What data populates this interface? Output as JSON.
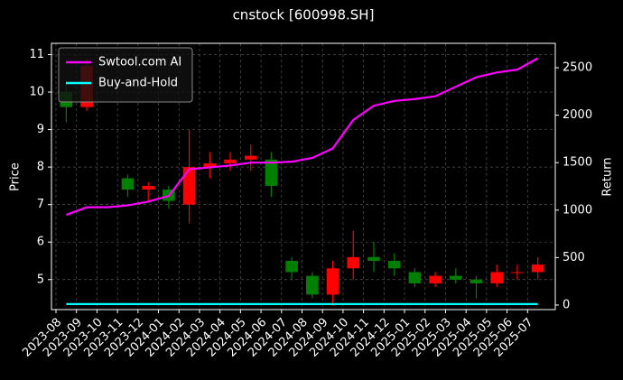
{
  "chart_data": {
    "type": "candlestick",
    "title": "cnstock [600998.SH]",
    "ylabel": "Price",
    "y2label": "Return",
    "x": [
      "2023-08",
      "2023-09",
      "2023-10",
      "2023-11",
      "2023-12",
      "2024-01",
      "2024-02",
      "2024-03",
      "2024-04",
      "2024-05",
      "2024-06",
      "2024-07",
      "2024-08",
      "2024-09",
      "2024-10",
      "2024-11",
      "2024-12",
      "2025-01",
      "2025-02",
      "2025-03",
      "2025-04",
      "2025-05",
      "2025-06",
      "2025-07"
    ],
    "xlim": [
      "2023-08",
      "2025-08"
    ],
    "ohlc": {
      "open": [
        10.0,
        9.6,
        null,
        7.7,
        7.4,
        7.4,
        7.0,
        8.0,
        8.1,
        8.2,
        8.2,
        5.5,
        5.1,
        4.6,
        5.3,
        5.6,
        5.5,
        5.2,
        4.9,
        5.1,
        5.0,
        4.9,
        5.2,
        5.2
      ],
      "high": [
        10.3,
        10.9,
        null,
        7.8,
        7.6,
        7.5,
        9.0,
        8.4,
        8.4,
        8.6,
        8.4,
        5.6,
        5.2,
        5.5,
        6.3,
        6.0,
        5.7,
        5.3,
        5.2,
        5.3,
        5.1,
        5.4,
        5.4,
        5.6
      ],
      "low": [
        9.2,
        9.5,
        null,
        7.2,
        7.1,
        6.9,
        6.5,
        7.7,
        7.9,
        7.9,
        7.2,
        5.0,
        4.5,
        4.3,
        5.0,
        5.2,
        5.1,
        4.8,
        4.8,
        4.9,
        4.5,
        4.8,
        5.0,
        5.0
      ],
      "close": [
        9.6,
        10.7,
        null,
        7.4,
        7.5,
        7.1,
        8.0,
        8.1,
        8.2,
        8.3,
        7.5,
        5.2,
        4.6,
        5.3,
        5.6,
        5.5,
        5.3,
        4.9,
        5.1,
        5.0,
        4.9,
        5.2,
        5.2,
        5.4
      ],
      "up_color": "#ff0000",
      "down_color": "#008000"
    },
    "series": [
      {
        "name": "Swtool.com AI",
        "color": "#ff00ff",
        "axis": "y2",
        "values": [
          950,
          1030,
          1030,
          1050,
          1090,
          1150,
          1430,
          1450,
          1470,
          1500,
          1500,
          1510,
          1550,
          1650,
          1950,
          2100,
          2150,
          2170,
          2200,
          2300,
          2400,
          2450,
          2480,
          2600
        ]
      },
      {
        "name": "Buy-and-Hold",
        "color": "#00ffff",
        "axis": "y2",
        "values": [
          10,
          10,
          10,
          10,
          10,
          10,
          10,
          10,
          10,
          10,
          10,
          10,
          10,
          10,
          10,
          10,
          10,
          10,
          10,
          10,
          10,
          10,
          10,
          10
        ]
      }
    ],
    "ylim": [
      4.2,
      11.3
    ],
    "yticks": [
      5,
      6,
      7,
      8,
      9,
      10,
      11
    ],
    "y2lim": [
      -48,
      2757
    ],
    "y2ticks": [
      0,
      500,
      1000,
      1500,
      2000,
      2500
    ],
    "grid": true,
    "legend": "upper left"
  }
}
